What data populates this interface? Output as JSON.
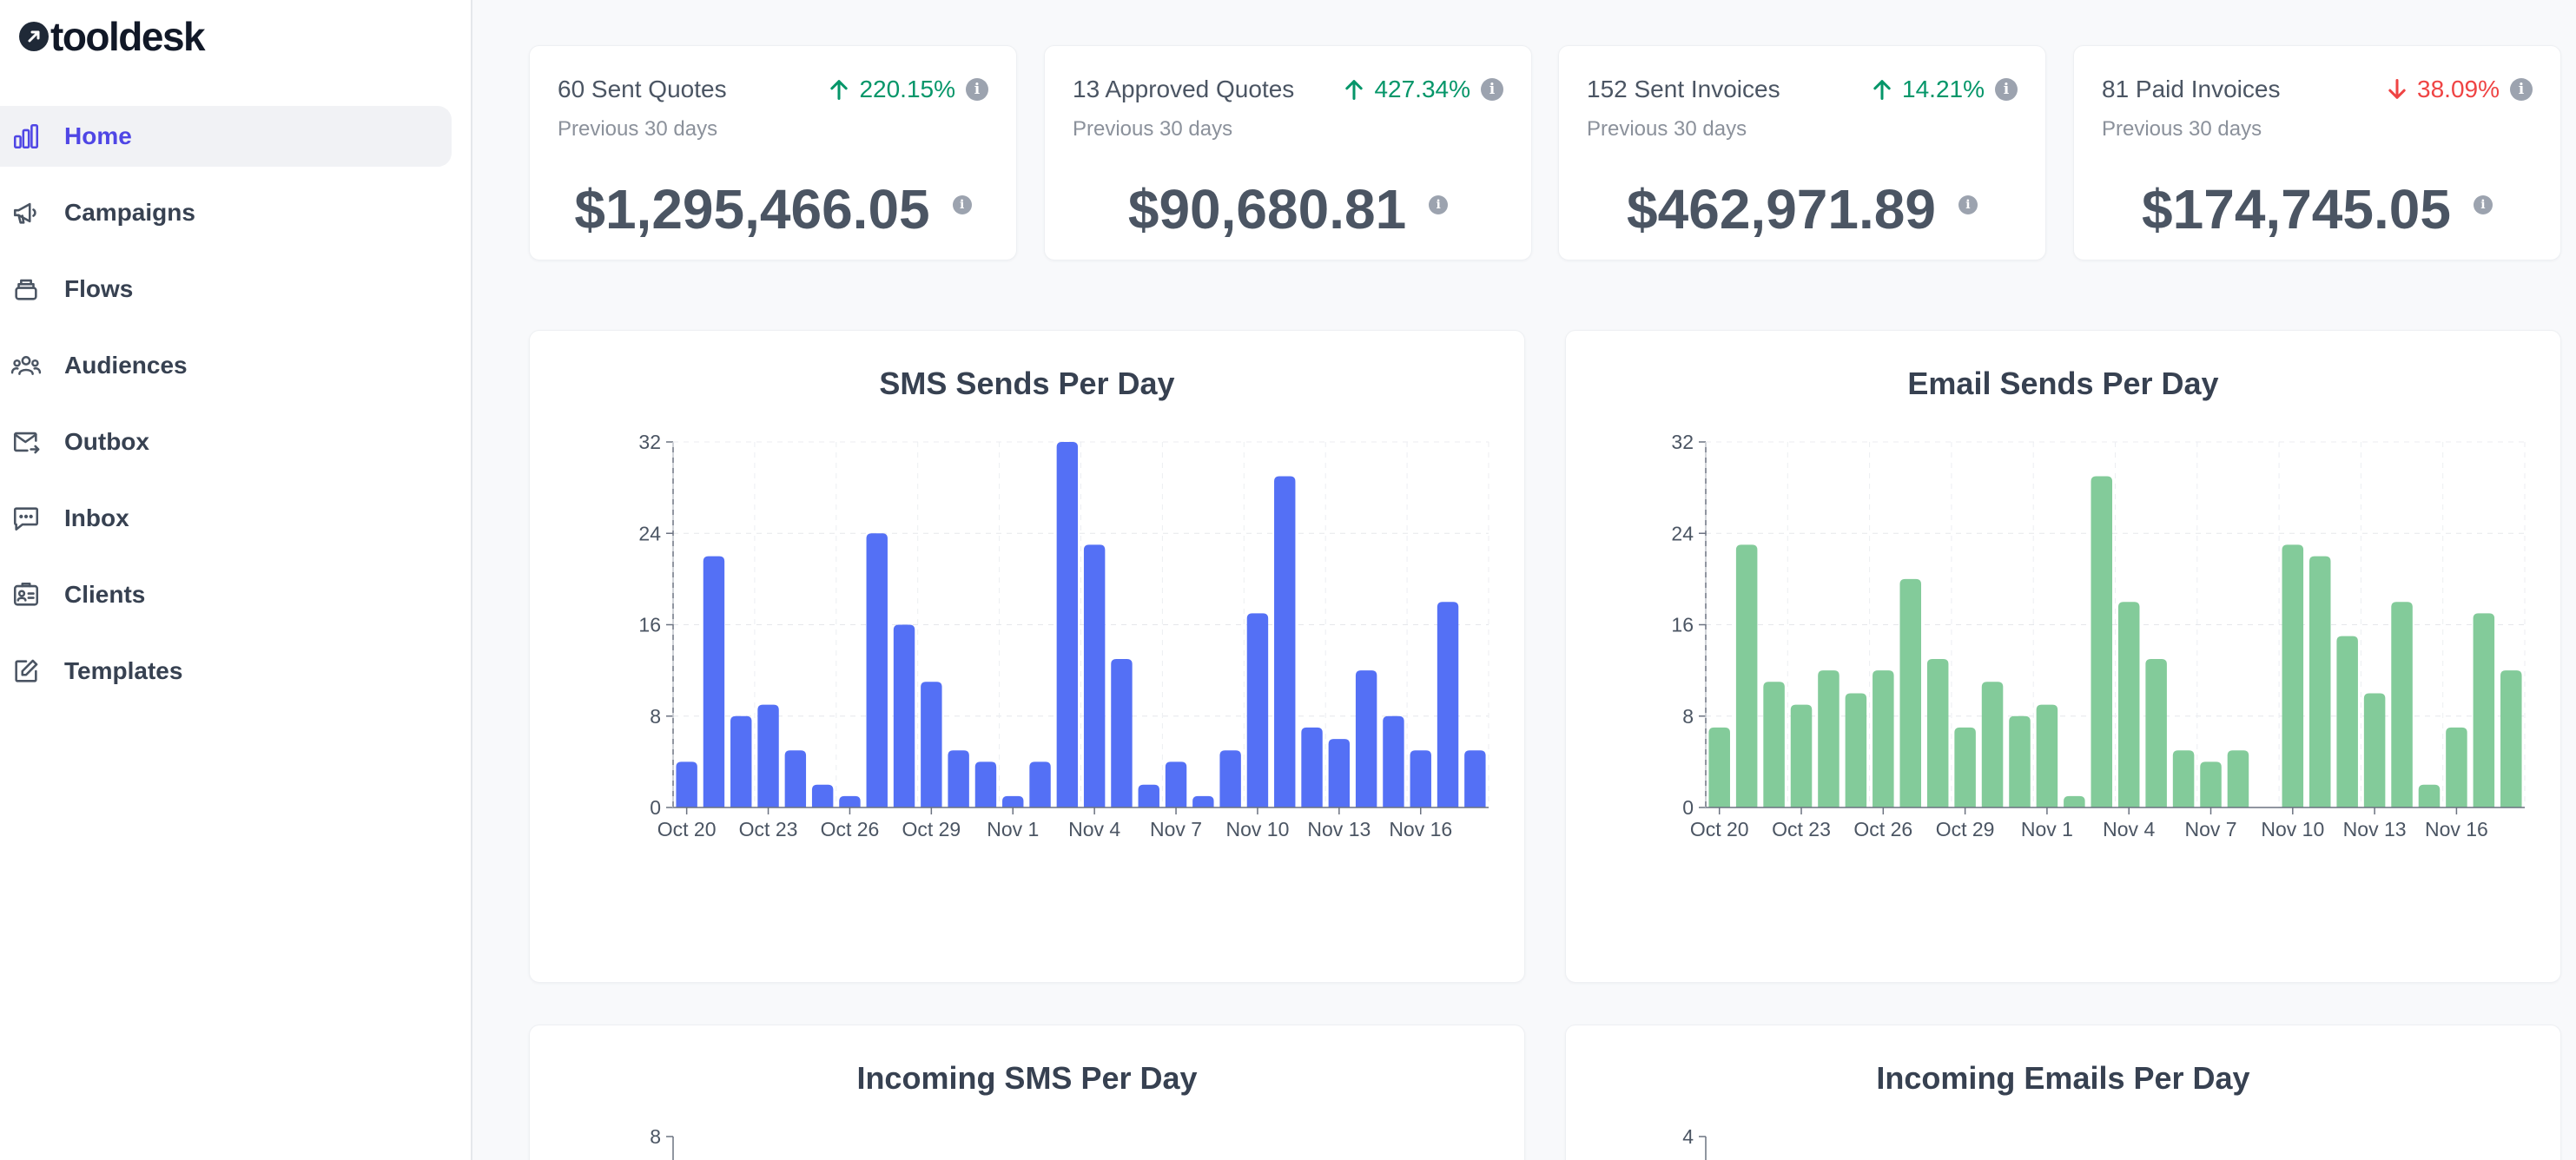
{
  "brand": {
    "name": "tooldesk"
  },
  "sidebar": {
    "items": [
      {
        "label": "Home",
        "icon": "bar-chart-icon",
        "active": true
      },
      {
        "label": "Campaigns",
        "icon": "megaphone-icon",
        "active": false
      },
      {
        "label": "Flows",
        "icon": "layers-icon",
        "active": false
      },
      {
        "label": "Audiences",
        "icon": "users-icon",
        "active": false
      },
      {
        "label": "Outbox",
        "icon": "mail-out-icon",
        "active": false
      },
      {
        "label": "Inbox",
        "icon": "chat-icon",
        "active": false
      },
      {
        "label": "Clients",
        "icon": "contact-card-icon",
        "active": false
      },
      {
        "label": "Templates",
        "icon": "edit-icon",
        "active": false
      }
    ]
  },
  "stats": [
    {
      "title": "60 Sent Quotes",
      "period": "Previous 30 days",
      "change": "220.15%",
      "direction": "up",
      "value": "$1,295,466.05"
    },
    {
      "title": "13 Approved Quotes",
      "period": "Previous 30 days",
      "change": "427.34%",
      "direction": "up",
      "value": "$90,680.81"
    },
    {
      "title": "152 Sent Invoices",
      "period": "Previous 30 days",
      "change": "14.21%",
      "direction": "up",
      "value": "$462,971.89"
    },
    {
      "title": "81 Paid Invoices",
      "period": "Previous 30 days",
      "change": "38.09%",
      "direction": "down",
      "value": "$174,745.05"
    }
  ],
  "colors": {
    "up": "#059669",
    "down": "#ef4444",
    "sms": "#5470f5",
    "email": "#83cb9a",
    "accent": "#4f46e5"
  },
  "chart_data": [
    {
      "type": "bar",
      "title": "SMS Sends Per Day",
      "color": "#5470f5",
      "ylim": [
        0,
        32
      ],
      "yticks": [
        0,
        8,
        16,
        24,
        32
      ],
      "xticks": [
        "Oct 20",
        "Oct 23",
        "Oct 26",
        "Oct 29",
        "Nov 1",
        "Nov 4",
        "Nov 7",
        "Nov 10",
        "Nov 13",
        "Nov 16"
      ],
      "values": [
        4,
        22,
        8,
        9,
        5,
        2,
        1,
        24,
        16,
        11,
        5,
        4,
        1,
        4,
        32,
        23,
        13,
        2,
        4,
        1,
        5,
        17,
        29,
        7,
        6,
        12,
        8,
        5,
        18,
        5
      ]
    },
    {
      "type": "bar",
      "title": "Email Sends Per Day",
      "color": "#83cb9a",
      "ylim": [
        0,
        32
      ],
      "yticks": [
        0,
        8,
        16,
        24,
        32
      ],
      "xticks": [
        "Oct 20",
        "Oct 23",
        "Oct 26",
        "Oct 29",
        "Nov 1",
        "Nov 4",
        "Nov 7",
        "Nov 10",
        "Nov 13",
        "Nov 16"
      ],
      "values": [
        7,
        23,
        11,
        9,
        12,
        10,
        12,
        20,
        13,
        7,
        11,
        8,
        9,
        1,
        29,
        18,
        13,
        5,
        4,
        5,
        0,
        23,
        22,
        15,
        10,
        18,
        2,
        7,
        17,
        12
      ]
    },
    {
      "type": "bar",
      "title": "Incoming SMS Per Day",
      "color": "#5470f5",
      "ylim": [
        0,
        8
      ],
      "yticks": [
        8
      ],
      "xticks": [],
      "values": []
    },
    {
      "type": "bar",
      "title": "Incoming Emails Per Day",
      "color": "#83cb9a",
      "ylim": [
        0,
        4
      ],
      "yticks": [
        4
      ],
      "xticks": [],
      "values": []
    }
  ]
}
